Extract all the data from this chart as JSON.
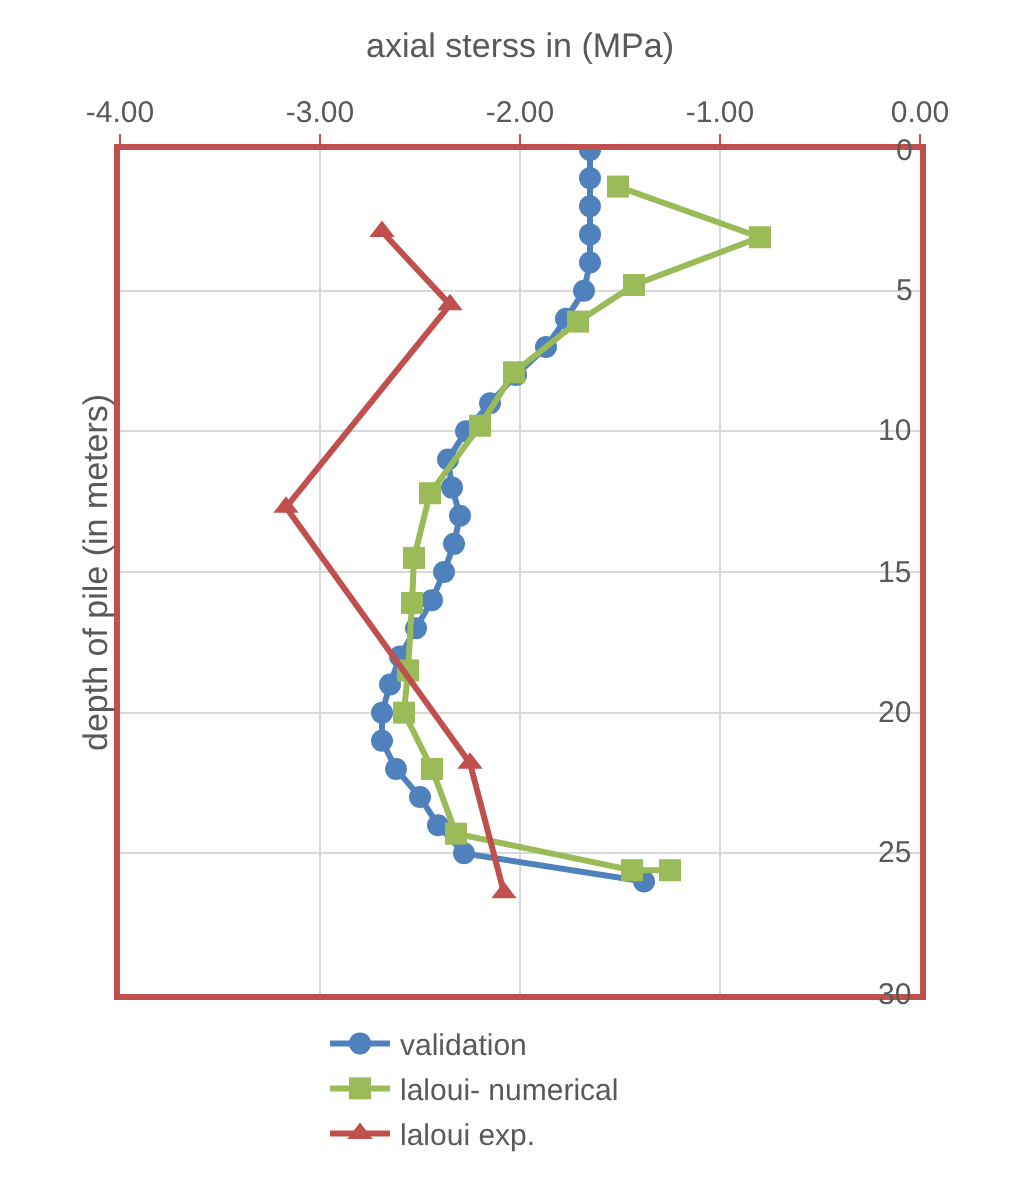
{
  "chart_data": {
    "type": "line",
    "xlabel": "axial sterss in (MPa)",
    "ylabel": "depth of pile (in meters)",
    "xlim": [
      -4,
      0
    ],
    "xticks": [
      {
        "value": -4,
        "label": "-4.00"
      },
      {
        "value": -3,
        "label": "-3.00"
      },
      {
        "value": -2,
        "label": "-2.00"
      },
      {
        "value": -1,
        "label": "-1.00"
      },
      {
        "value": 0,
        "label": "0.00"
      }
    ],
    "ylim": [
      30,
      0
    ],
    "yticks": [
      0,
      5,
      10,
      15,
      20,
      25,
      30
    ],
    "grid": true,
    "legend": "bottom",
    "line_style": "solid",
    "series": [
      {
        "name": "validation",
        "color": "#4f81bd",
        "marker": "circle",
        "x": [
          -1.65,
          -1.65,
          -1.65,
          -1.65,
          -1.65,
          -1.68,
          -1.77,
          -1.87,
          -2.02,
          -2.15,
          -2.27,
          -2.36,
          -2.34,
          -2.3,
          -2.33,
          -2.38,
          -2.44,
          -2.52,
          -2.6,
          -2.65,
          -2.69,
          -2.69,
          -2.62,
          -2.5,
          -2.41,
          -2.28,
          -1.38
        ],
        "values": [
          0,
          1,
          2,
          3,
          4,
          5,
          6,
          7,
          8,
          9,
          10,
          11,
          12,
          13,
          14,
          15,
          16,
          17,
          18,
          19,
          20,
          21,
          22,
          23,
          24,
          25,
          26
        ]
      },
      {
        "name": "laloui- numerical",
        "color": "#9bbb59",
        "marker": "square",
        "x": [
          -1.51,
          -0.8,
          -1.43,
          -1.71,
          -2.03,
          -2.2,
          -2.45,
          -2.53,
          -2.54,
          -2.56,
          -2.58,
          -2.44,
          -2.32,
          -1.44,
          -1.25
        ],
        "values": [
          1.3,
          3.1,
          4.8,
          6.1,
          7.9,
          9.8,
          12.2,
          14.5,
          16.1,
          18.5,
          20,
          22,
          24.3,
          25.6,
          25.6
        ]
      },
      {
        "name": "laloui exp.",
        "color": "#c0504d",
        "marker": "triangle",
        "x": [
          -2.69,
          -2.35,
          -3.17,
          -2.25,
          -2.08
        ],
        "values": [
          2.9,
          5.5,
          12.7,
          21.8,
          26.4
        ]
      }
    ]
  }
}
